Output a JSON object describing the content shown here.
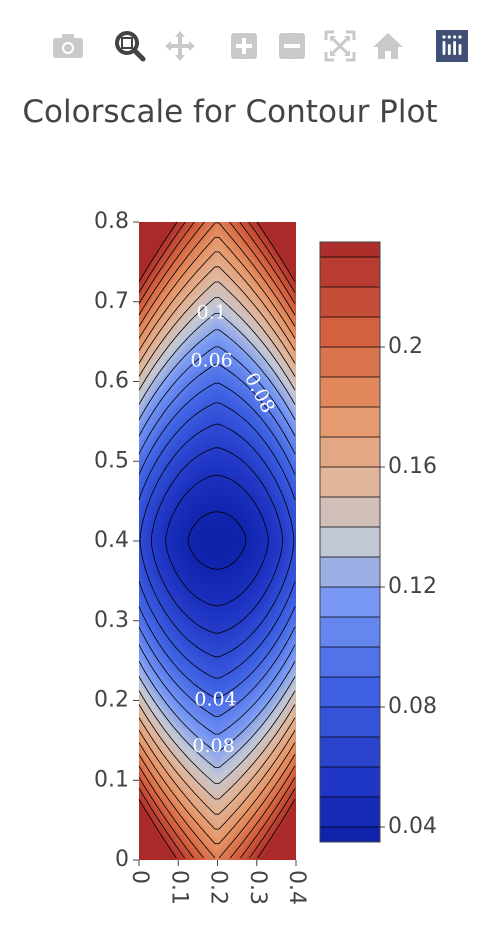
{
  "modebar": {
    "buttons": [
      {
        "name": "camera-icon",
        "active": false
      },
      {
        "name": "zoom-icon",
        "active": true
      },
      {
        "name": "pan-icon",
        "active": false
      },
      {
        "name": "zoom-in-icon",
        "active": false
      },
      {
        "name": "zoom-out-icon",
        "active": false
      },
      {
        "name": "autoscale-icon",
        "active": false
      },
      {
        "name": "home-icon",
        "active": false
      },
      {
        "name": "plotly-logo-icon",
        "active": false
      }
    ]
  },
  "chart_data": {
    "type": "contour",
    "title": "Colorscale for Contour Plot",
    "x_range": [
      0,
      0.4
    ],
    "y_range": [
      0,
      0.8
    ],
    "x_ticks": [
      "0",
      "0.1",
      "0.2",
      "0.3",
      "0.4"
    ],
    "x_tick_values": [
      0,
      0.1,
      0.2,
      0.3,
      0.4
    ],
    "y_ticks": [
      "0",
      "0.1",
      "0.2",
      "0.3",
      "0.4",
      "0.5",
      "0.6",
      "0.7",
      "0.8"
    ],
    "y_tick_values": [
      0,
      0.1,
      0.2,
      0.3,
      0.4,
      0.5,
      0.6,
      0.7,
      0.8
    ],
    "z_min": 0.035,
    "z_max": 0.235,
    "contour_step": 0.01,
    "contour_labels": [
      {
        "text": "0.1",
        "x": 0.185,
        "y": 0.685
      },
      {
        "text": "0.06",
        "x": 0.185,
        "y": 0.625
      },
      {
        "text": "0.08",
        "x": 0.305,
        "y": 0.585
      },
      {
        "text": "0.04",
        "x": 0.195,
        "y": 0.2
      },
      {
        "text": "0.08",
        "x": 0.19,
        "y": 0.142
      }
    ],
    "colorbar": {
      "ticks": [
        "0.04",
        "0.08",
        "0.12",
        "0.16",
        "0.2"
      ],
      "tick_values": [
        0.04,
        0.08,
        0.12,
        0.16,
        0.2
      ]
    },
    "colorscale": [
      [
        0,
        "#0b1fa7"
      ],
      [
        0.1,
        "#2036c5"
      ],
      [
        0.25,
        "#3e61e3"
      ],
      [
        0.4,
        "#7898f4"
      ],
      [
        0.5,
        "#c2c8d6"
      ],
      [
        0.6,
        "#e0b59a"
      ],
      [
        0.72,
        "#e69466"
      ],
      [
        0.85,
        "#d3603f"
      ],
      [
        1,
        "#aa2a29"
      ]
    ],
    "grid": false,
    "legend": "colorbar-right"
  }
}
